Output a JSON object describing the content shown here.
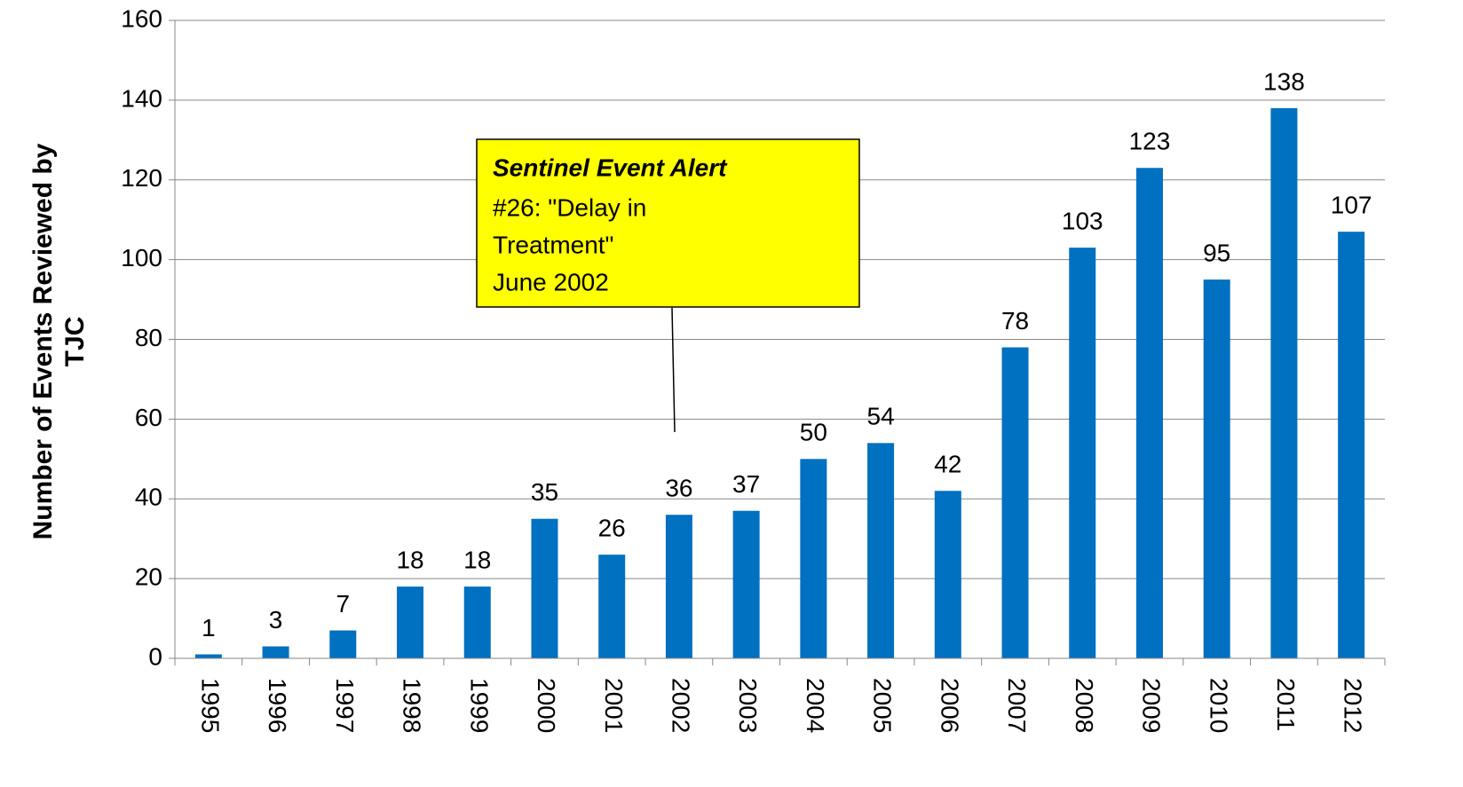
{
  "chart_data": {
    "type": "bar",
    "y_axis_label": [
      "Number of Events Reviewed by",
      "TJC"
    ],
    "categories": [
      "1995",
      "1996",
      "1997",
      "1998",
      "1999",
      "2000",
      "2001",
      "2002",
      "2003",
      "2004",
      "2005",
      "2006",
      "2007",
      "2008",
      "2009",
      "2010",
      "2011",
      "2012"
    ],
    "values": [
      1,
      3,
      7,
      18,
      18,
      35,
      26,
      36,
      37,
      50,
      54,
      42,
      78,
      103,
      123,
      95,
      138,
      107
    ],
    "color": "#0070c0",
    "ylim": [
      0,
      160
    ],
    "yticks": [
      0,
      20,
      40,
      60,
      80,
      100,
      120,
      140,
      160
    ],
    "grid": true,
    "annotation": {
      "title": "Sentinel Event Alert",
      "lines": [
        "#26: \"Delay in",
        "Treatment\"",
        "June 2002"
      ]
    }
  }
}
